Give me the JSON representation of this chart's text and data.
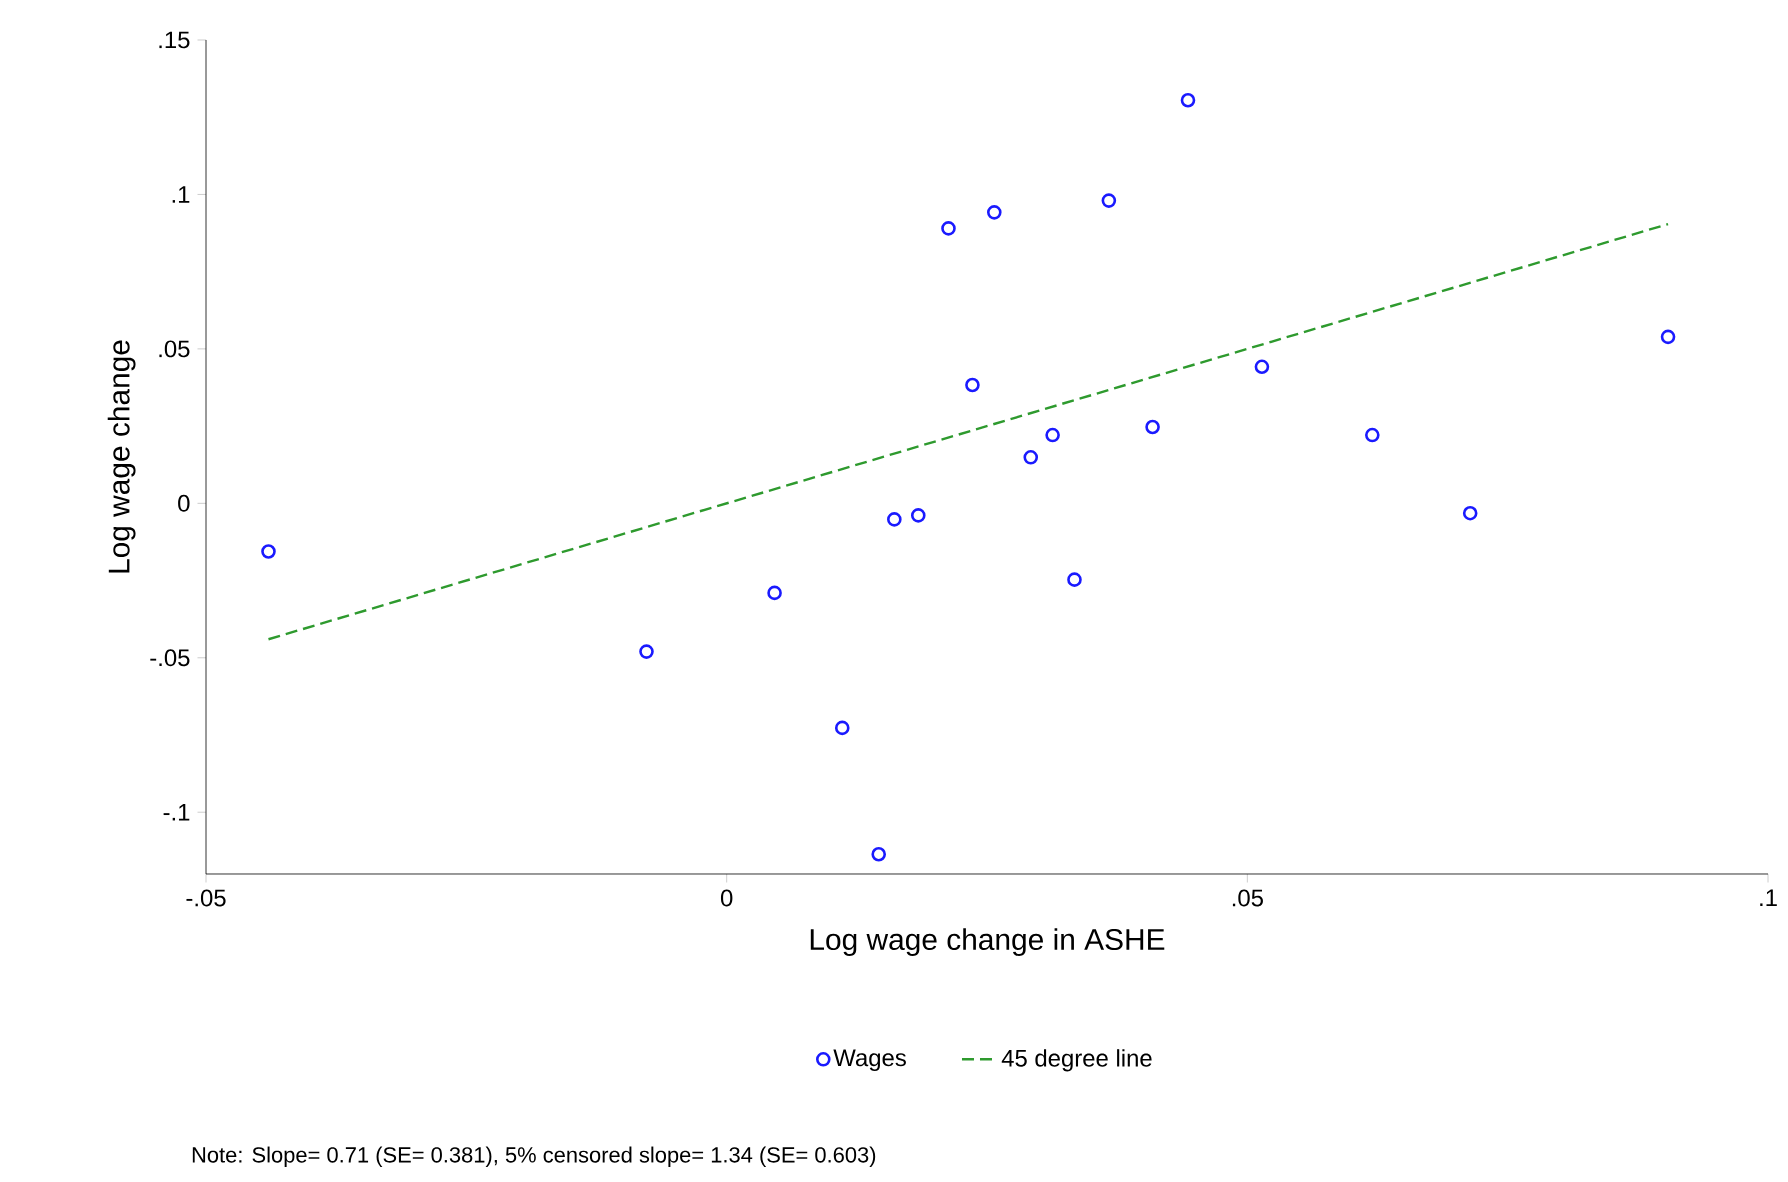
{
  "chart_data": {
    "type": "scatter",
    "xlabel": "Log wage change in ASHE",
    "ylabel": "Log wage change",
    "xlim": [
      -0.05,
      0.1
    ],
    "ylim": [
      -0.12,
      0.15
    ],
    "xticks": [
      {
        "value": -0.05,
        "label": "-.05"
      },
      {
        "value": 0,
        "label": "0"
      },
      {
        "value": 0.05,
        "label": ".05"
      },
      {
        "value": 0.1,
        "label": ".1"
      }
    ],
    "yticks": [
      {
        "value": -0.1,
        "label": "-.1"
      },
      {
        "value": -0.05,
        "label": "-.05"
      },
      {
        "value": 0,
        "label": "0"
      },
      {
        "value": 0.05,
        "label": ".05"
      },
      {
        "value": 0.1,
        "label": ".1"
      },
      {
        "value": 0.15,
        "label": ".15"
      }
    ],
    "grid": false,
    "legend": "bottom",
    "series": [
      {
        "name": "Wages",
        "type": "scatter",
        "color": "#1a1aff",
        "marker": "circle",
        "x": [
          -0.044,
          -0.0077,
          0.0046,
          0.0111,
          0.0146,
          0.0161,
          0.0184,
          0.0213,
          0.0236,
          0.0257,
          0.0292,
          0.0313,
          0.0334,
          0.0367,
          0.0409,
          0.0443,
          0.0514,
          0.062,
          0.0714,
          0.0904
        ],
        "values": [
          -0.0156,
          -0.048,
          -0.029,
          -0.0727,
          -0.1136,
          -0.0052,
          -0.0039,
          0.089,
          0.0383,
          0.0942,
          0.0149,
          0.0221,
          -0.0247,
          0.098,
          0.0247,
          0.1305,
          0.0442,
          0.0221,
          -0.0032,
          0.0539
        ]
      },
      {
        "name": "45 degree line",
        "type": "line",
        "color": "#2e9a2e",
        "marker": "none",
        "line_style": "dashed",
        "x": [
          -0.044,
          0.0904
        ],
        "values": [
          -0.044,
          0.0904
        ]
      }
    ],
    "annotations": [
      "Note: Slope= 0.71 (SE= 0.381), 5% censored slope= 1.34 (SE= 0.603)"
    ]
  }
}
